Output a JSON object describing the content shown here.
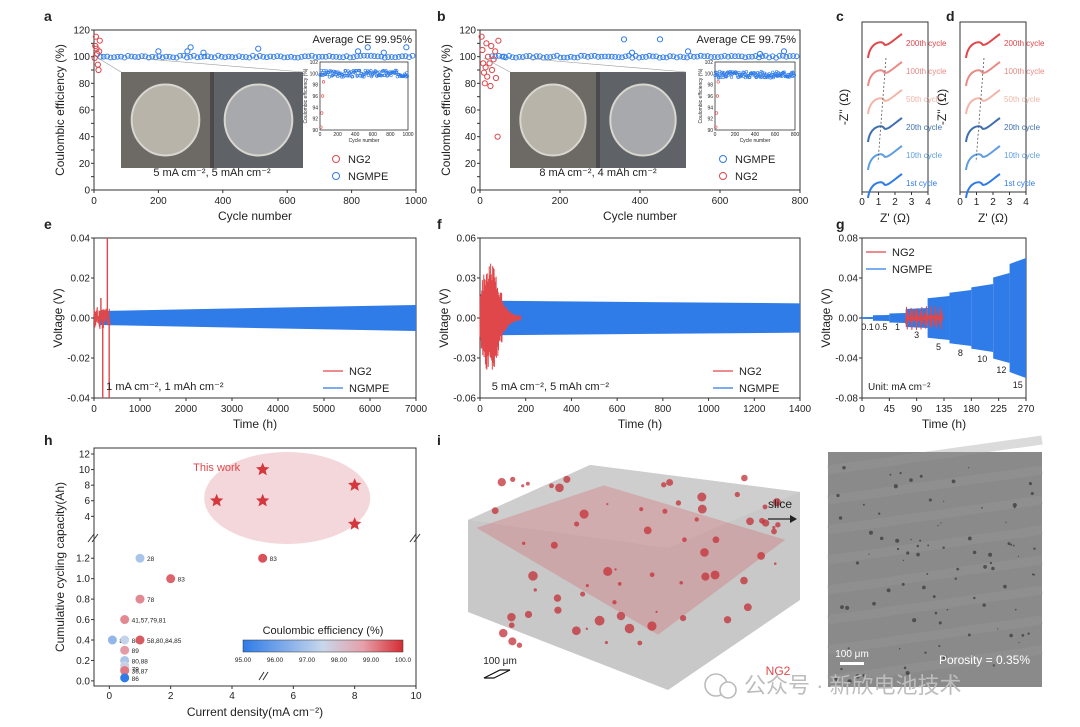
{
  "panel_letters": [
    "a",
    "b",
    "c",
    "d",
    "e",
    "f",
    "g",
    "h",
    "i"
  ],
  "colors": {
    "ng2": "#e0474b",
    "ngmpe": "#2f7be8",
    "ellipse": "#f2d0d3",
    "axis": "#333333",
    "grid_light": "#bbbbbb",
    "photo": "#5a5a5a",
    "sem": "#8a8a8a",
    "tomo": "#b6b6b6",
    "slice": "#d8383f"
  },
  "watermark": {
    "text": "公众号 · 新欣电池技术",
    "icon": "wechat-icon"
  },
  "chart_data": [
    {
      "id": "a",
      "type": "scatter",
      "xlabel": "Cycle number",
      "ylabel": "Coulombic efficiency (%)",
      "xlim": [
        0,
        1000
      ],
      "ylim": [
        0,
        120
      ],
      "xticks": [
        0,
        200,
        400,
        600,
        800,
        1000
      ],
      "yticks": [
        0,
        10,
        20,
        30,
        40,
        50,
        60,
        70,
        80,
        90,
        100,
        110,
        120
      ],
      "annotation": "Average CE 99.95%",
      "condition": "5 mA cm⁻², 5 mAh cm⁻²",
      "legend": [
        {
          "name": "NG2",
          "color": "#e0474b"
        },
        {
          "name": "NGMPE",
          "color": "#2f7be8"
        }
      ],
      "series": [
        {
          "name": "NG2",
          "color": "#e0474b",
          "points": [
            [
              2,
              99
            ],
            [
              4,
              108
            ],
            [
              6,
              115
            ],
            [
              8,
              106
            ],
            [
              10,
              102
            ],
            [
              12,
              94
            ],
            [
              14,
              90
            ],
            [
              16,
              104
            ],
            [
              18,
              112
            ]
          ]
        },
        {
          "name": "NGMPE",
          "color": "#2f7be8",
          "points": [
            [
              20,
              100
            ],
            [
              200,
              104
            ],
            [
              290,
              104
            ],
            [
              300,
              107
            ],
            [
              340,
              103
            ],
            [
              510,
              106
            ],
            [
              820,
              104
            ],
            [
              850,
              107
            ],
            [
              900,
              103
            ],
            [
              970,
              107
            ]
          ]
        }
      ],
      "inset": {
        "xlabel": "Cycle number",
        "ylabel": "Coulombic efficiency (%)",
        "xlim": [
          0,
          1000
        ],
        "ylim": [
          90,
          102
        ],
        "xticks": [
          0,
          200,
          400,
          600,
          800,
          1000
        ],
        "yticks": [
          90,
          92,
          94,
          96,
          98,
          100,
          102
        ],
        "series_color": "#2f7be8",
        "value": 99.95
      }
    },
    {
      "id": "b",
      "type": "scatter",
      "xlabel": "Cycle number",
      "ylabel": "Coulombic efficiency (%)",
      "xlim": [
        0,
        800
      ],
      "ylim": [
        0,
        120
      ],
      "xticks": [
        0,
        200,
        400,
        600,
        800
      ],
      "yticks": [
        0,
        10,
        20,
        30,
        40,
        50,
        60,
        70,
        80,
        90,
        100,
        110,
        120
      ],
      "annotation": "Average CE 99.75%",
      "condition": "8 mA cm⁻², 4 mAh cm⁻²",
      "legend": [
        {
          "name": "NGMPE",
          "color": "#2f7be8"
        },
        {
          "name": "NG2",
          "color": "#e0474b"
        }
      ],
      "series": [
        {
          "name": "NG2",
          "color": "#e0474b",
          "points": [
            [
              4,
              115
            ],
            [
              6,
              105
            ],
            [
              8,
              95
            ],
            [
              10,
              88
            ],
            [
              12,
              80
            ],
            [
              14,
              92
            ],
            [
              16,
              110
            ],
            [
              18,
              85
            ],
            [
              20,
              100
            ],
            [
              24,
              95
            ],
            [
              26,
              78
            ],
            [
              28,
              108
            ],
            [
              30,
              90
            ],
            [
              34,
              98
            ],
            [
              38,
              104
            ],
            [
              40,
              84
            ],
            [
              44,
              40
            ],
            [
              46,
              112
            ]
          ]
        },
        {
          "name": "NGMPE",
          "color": "#2f7be8",
          "points": [
            [
              60,
              100
            ],
            [
              360,
              113
            ],
            [
              450,
              113
            ],
            [
              380,
              103
            ],
            [
              520,
              104
            ],
            [
              700,
              102
            ],
            [
              760,
              104
            ]
          ]
        }
      ],
      "inset": {
        "xlabel": "Cycle number",
        "ylabel": "Coulombic efficiency (%)",
        "xlim": [
          0,
          800
        ],
        "ylim": [
          90,
          102
        ],
        "xticks": [
          0,
          200,
          400,
          600,
          800
        ],
        "yticks": [
          90,
          92,
          94,
          96,
          98,
          100,
          102
        ],
        "series_color": "#2f7be8",
        "value": 99.75
      }
    },
    {
      "id": "c",
      "type": "line",
      "xlabel": "Z' (Ω)",
      "ylabel": "-Z'' (Ω)",
      "xlim": [
        0,
        4
      ],
      "xticks": [
        0,
        1,
        2,
        3,
        4
      ],
      "series": [
        {
          "name": "200th cycle",
          "color": "#e0474b"
        },
        {
          "name": "100th cycle",
          "color": "#ea8a85"
        },
        {
          "name": "50th cycle",
          "color": "#f1b6a8"
        },
        {
          "name": "20th cycle",
          "color": "#3f6fae"
        },
        {
          "name": "10th cycle",
          "color": "#5f9ee0"
        },
        {
          "name": "1st cycle",
          "color": "#2f7be8"
        }
      ]
    },
    {
      "id": "d",
      "type": "line",
      "xlabel": "Z' (Ω)",
      "ylabel": "-Z'' (Ω)",
      "xlim": [
        0,
        4
      ],
      "xticks": [
        0,
        1,
        2,
        3,
        4
      ],
      "series": [
        {
          "name": "200th cycle",
          "color": "#e0474b"
        },
        {
          "name": "100th cycle",
          "color": "#ea8a85"
        },
        {
          "name": "50th cycle",
          "color": "#f1b6a8"
        },
        {
          "name": "20th cycle",
          "color": "#3f6fae"
        },
        {
          "name": "10th cycle",
          "color": "#5f9ee0"
        },
        {
          "name": "1st cycle",
          "color": "#2f7be8"
        }
      ]
    },
    {
      "id": "e",
      "type": "line",
      "xlabel": "Time (h)",
      "ylabel": "Voltage (V)",
      "xlim": [
        0,
        7000
      ],
      "ylim": [
        -0.04,
        0.04
      ],
      "xticks": [
        0,
        1000,
        2000,
        3000,
        4000,
        5000,
        6000,
        7000
      ],
      "yticks": [
        -0.04,
        -0.02,
        0.0,
        0.02,
        0.04
      ],
      "condition": "1 mA cm⁻², 1 mAh cm⁻²",
      "legend": [
        {
          "name": "NG2",
          "color": "#e0474b"
        },
        {
          "name": "NGMPE",
          "color": "#2f7be8"
        }
      ],
      "series": [
        {
          "name": "NGMPE",
          "color": "#2f7be8",
          "x_start": 100,
          "x_end": 7000,
          "amp_start": 0.0035,
          "amp_end": 0.0065
        },
        {
          "name": "NG2",
          "color": "#e0474b",
          "x_start": 0,
          "x_end": 350,
          "spikes": [
            [
              150,
              0.01
            ],
            [
              190,
              -0.04
            ],
            [
              290,
              0.04
            ],
            [
              330,
              -0.04
            ]
          ]
        }
      ]
    },
    {
      "id": "f",
      "type": "line",
      "xlabel": "Time (h)",
      "ylabel": "Voltage (V)",
      "xlim": [
        0,
        1400
      ],
      "ylim": [
        -0.06,
        0.06
      ],
      "xticks": [
        0,
        200,
        400,
        600,
        800,
        1000,
        1200,
        1400
      ],
      "yticks": [
        -0.06,
        -0.03,
        0.0,
        0.03,
        0.06
      ],
      "condition": "5 mA cm⁻², 5 mAh cm⁻²",
      "legend": [
        {
          "name": "NG2",
          "color": "#e0474b"
        },
        {
          "name": "NGMPE",
          "color": "#2f7be8"
        }
      ],
      "series": [
        {
          "name": "NGMPE",
          "color": "#2f7be8",
          "x_start": 10,
          "x_end": 1400,
          "amp_start": 0.013,
          "amp_end": 0.011
        },
        {
          "name": "NG2",
          "color": "#e0474b",
          "x_start": 0,
          "x_end": 180,
          "amp_peak": 0.04
        }
      ]
    },
    {
      "id": "g",
      "type": "line",
      "xlabel": "Time (h)",
      "ylabel": "Voltage (V)",
      "xlim": [
        0,
        270
      ],
      "ylim": [
        -0.08,
        0.08
      ],
      "xticks": [
        0,
        45,
        90,
        135,
        180,
        225,
        270
      ],
      "yticks": [
        -0.08,
        -0.04,
        0.0,
        0.04,
        0.08
      ],
      "unit_note": "Unit: mA cm⁻²",
      "legend": [
        {
          "name": "NG2",
          "color": "#e0474b"
        },
        {
          "name": "NGMPE",
          "color": "#2f7be8"
        }
      ],
      "steps": [
        {
          "label": "0.1",
          "t0": 0,
          "t1": 18,
          "amp": 0.001
        },
        {
          "label": "0.5",
          "t0": 18,
          "t1": 45,
          "amp": 0.003
        },
        {
          "label": "1",
          "t0": 45,
          "t1": 72,
          "amp": 0.005
        },
        {
          "label": "3",
          "t0": 72,
          "t1": 108,
          "amp": 0.01
        },
        {
          "label": "5",
          "t0": 108,
          "t1": 144,
          "amp": 0.022
        },
        {
          "label": "8",
          "t0": 144,
          "t1": 180,
          "amp": 0.028
        },
        {
          "label": "10",
          "t0": 180,
          "t1": 216,
          "amp": 0.034
        },
        {
          "label": "12",
          "t0": 216,
          "t1": 243,
          "amp": 0.045
        },
        {
          "label": "15",
          "t0": 243,
          "t1": 270,
          "amp": 0.06
        }
      ],
      "ng2_range": [
        72,
        135
      ],
      "ng2_amp": 0.012
    },
    {
      "id": "h",
      "type": "scatter",
      "xlabel": "Current density(mA cm⁻²)",
      "ylabel": "Cumulative cycling capacity(Ah)",
      "xticks": [
        0,
        2,
        4,
        6,
        8,
        10
      ],
      "yticks_low": [
        0.0,
        0.2,
        0.4,
        0.6,
        0.8,
        1.0,
        1.2
      ],
      "yticks_high": [
        4,
        6,
        8,
        10,
        12
      ],
      "highlight_label": "This work",
      "colorbar": {
        "title": "Coulombic efficiency (%)",
        "ticks": [
          "95.00",
          "96.00",
          "97.00",
          "98.00",
          "99.00",
          "100.0"
        ],
        "min": 95,
        "max": 100
      },
      "this_work": [
        [
          5,
          10
        ],
        [
          3.5,
          6
        ],
        [
          5,
          6
        ],
        [
          8,
          8
        ],
        [
          8,
          3
        ]
      ],
      "literature": [
        {
          "x": 0.1,
          "y": 0.4,
          "ce": 96.6,
          "label": "82"
        },
        {
          "x": 0.5,
          "y": 0.4,
          "ce": 97.4,
          "label": "80"
        },
        {
          "x": 0.5,
          "y": 0.6,
          "ce": 99.0,
          "label": "41,57,79,81"
        },
        {
          "x": 0.5,
          "y": 0.3,
          "ce": 98.8,
          "label": "89"
        },
        {
          "x": 0.5,
          "y": 0.2,
          "ce": 97.0,
          "label": "80,88"
        },
        {
          "x": 0.5,
          "y": 0.15,
          "ce": 97.6,
          "label": ""
        },
        {
          "x": 0.5,
          "y": 0.12,
          "ce": 97.8,
          "label": "79"
        },
        {
          "x": 0.5,
          "y": 0.1,
          "ce": 99.2,
          "label": "36,87"
        },
        {
          "x": 0.5,
          "y": 0.03,
          "ce": 95.0,
          "label": "86"
        },
        {
          "x": 1,
          "y": 1.2,
          "ce": 97.0,
          "label": "28"
        },
        {
          "x": 1,
          "y": 0.8,
          "ce": 99.0,
          "label": "78"
        },
        {
          "x": 1,
          "y": 0.4,
          "ce": 99.5,
          "label": "58,80,84,85"
        },
        {
          "x": 2,
          "y": 1.0,
          "ce": 99.4,
          "label": "83"
        },
        {
          "x": 5,
          "y": 1.2,
          "ce": 99.6,
          "label": "83"
        }
      ]
    }
  ],
  "panel_i": {
    "slice_label": "slice",
    "tomo_scale": "100 μm",
    "sample": "NG2",
    "sem_scale": "100 μm",
    "porosity": "Porosity = 0.35%"
  }
}
